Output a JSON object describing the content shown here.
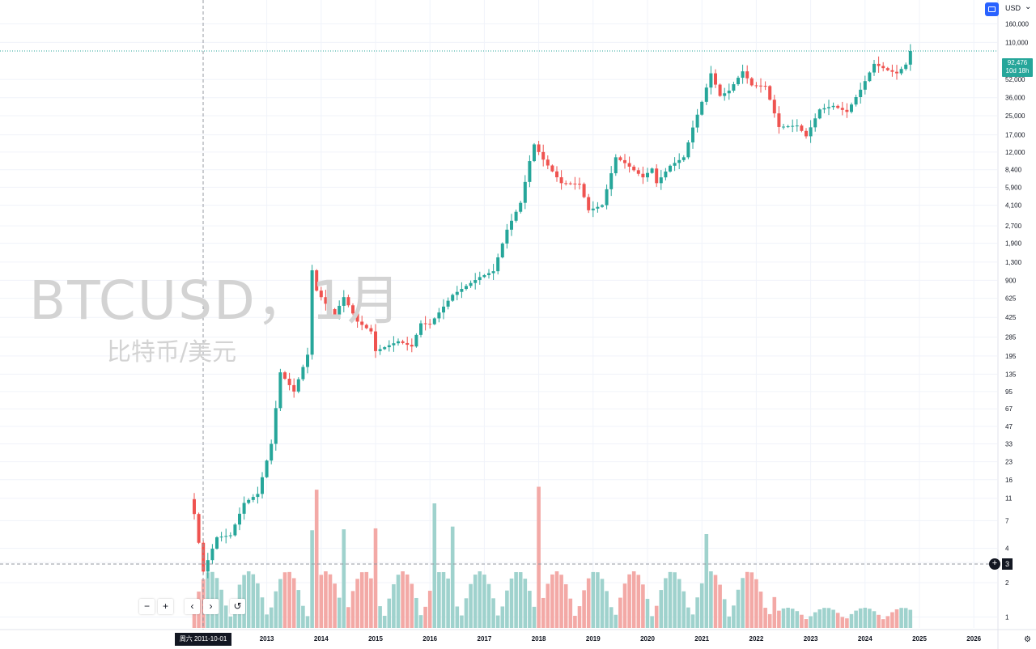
{
  "watermark": {
    "symbol": "BTCUSD，1月",
    "description": "比特币/美元"
  },
  "currency": {
    "label": "USD",
    "caret": "⌄"
  },
  "last_price": {
    "value": "92,476",
    "countdown": "10d 18h"
  },
  "crosshair": {
    "date_label": "周六 2011-10-01",
    "volume_label": "3"
  },
  "controls": {
    "zoom_out": "−",
    "zoom_in": "+",
    "scroll_left": "‹",
    "scroll_right": "›",
    "reset": "↺",
    "add": "+",
    "settings": "⚙"
  },
  "colors": {
    "up": "#26a69a",
    "down": "#ef5350",
    "up_vol": "#9fd2cd",
    "down_vol": "#f3a9a6",
    "grid": "#f0f3fa",
    "axis_text": "#131722"
  },
  "chart_data": {
    "type": "candlestick",
    "title": "BTCUSD，1月",
    "subtitle": "比特币/美元",
    "y_scale": "log",
    "ylim": [
      0.8,
      220000
    ],
    "y_ticks": [
      "1",
      "2",
      "3",
      "4",
      "7",
      "11",
      "16",
      "23",
      "33",
      "47",
      "67",
      "95",
      "135",
      "195",
      "285",
      "425",
      "625",
      "900",
      "1,300",
      "1,900",
      "2,700",
      "4,100",
      "5,900",
      "8,400",
      "12,000",
      "17,000",
      "25,000",
      "36,000",
      "52,000",
      "110,000",
      "160,000"
    ],
    "x_ticks": [
      "2013",
      "2014",
      "2015",
      "2016",
      "2017",
      "2018",
      "2019",
      "2020",
      "2021",
      "2022",
      "2023",
      "2024",
      "2025",
      "2026"
    ],
    "anchors": [
      [
        "2011-09",
        8
      ],
      [
        "2011-11",
        2.5
      ],
      [
        "2012-02",
        5
      ],
      [
        "2012-05",
        5.2
      ],
      [
        "2012-08",
        10
      ],
      [
        "2012-11",
        12
      ],
      [
        "2013-02",
        33
      ],
      [
        "2013-04",
        140
      ],
      [
        "2013-07",
        95
      ],
      [
        "2013-10",
        200
      ],
      [
        "2013-11",
        1100
      ],
      [
        "2013-12",
        730
      ],
      [
        "2014-02",
        560
      ],
      [
        "2014-04",
        450
      ],
      [
        "2014-06",
        640
      ],
      [
        "2014-09",
        390
      ],
      [
        "2014-12",
        320
      ],
      [
        "2015-01",
        215
      ],
      [
        "2015-06",
        262
      ],
      [
        "2015-09",
        236
      ],
      [
        "2015-11",
        377
      ],
      [
        "2016-01",
        370
      ],
      [
        "2016-06",
        670
      ],
      [
        "2016-12",
        960
      ],
      [
        "2017-03",
        1080
      ],
      [
        "2017-06",
        2500
      ],
      [
        "2017-09",
        4300
      ],
      [
        "2017-11",
        10000
      ],
      [
        "2017-12",
        14000
      ],
      [
        "2018-02",
        10300
      ],
      [
        "2018-06",
        6400
      ],
      [
        "2018-10",
        6300
      ],
      [
        "2018-12",
        3700
      ],
      [
        "2019-03",
        4100
      ],
      [
        "2019-06",
        10800
      ],
      [
        "2019-08",
        9600
      ],
      [
        "2019-12",
        7200
      ],
      [
        "2020-02",
        8600
      ],
      [
        "2020-03",
        6400
      ],
      [
        "2020-06",
        9100
      ],
      [
        "2020-09",
        10800
      ],
      [
        "2020-11",
        19700
      ],
      [
        "2021-01",
        33100
      ],
      [
        "2021-03",
        58900
      ],
      [
        "2021-05",
        37300
      ],
      [
        "2021-07",
        41500
      ],
      [
        "2021-10",
        61300
      ],
      [
        "2021-12",
        46200
      ],
      [
        "2022-03",
        45500
      ],
      [
        "2022-06",
        19900
      ],
      [
        "2022-10",
        20500
      ],
      [
        "2022-12",
        16500
      ],
      [
        "2023-03",
        28400
      ],
      [
        "2023-06",
        30500
      ],
      [
        "2023-09",
        27000
      ],
      [
        "2023-12",
        42300
      ],
      [
        "2024-03",
        71300
      ],
      [
        "2024-06",
        62700
      ],
      [
        "2024-08",
        58900
      ],
      [
        "2024-10",
        70200
      ],
      [
        "2024-11",
        92476
      ]
    ],
    "last_value": 92476,
    "volume_highlight_months": [
      "2013-11",
      "2013-12",
      "2014-06",
      "2015-01",
      "2016-02",
      "2016-06",
      "2018-01",
      "2021-02"
    ]
  }
}
